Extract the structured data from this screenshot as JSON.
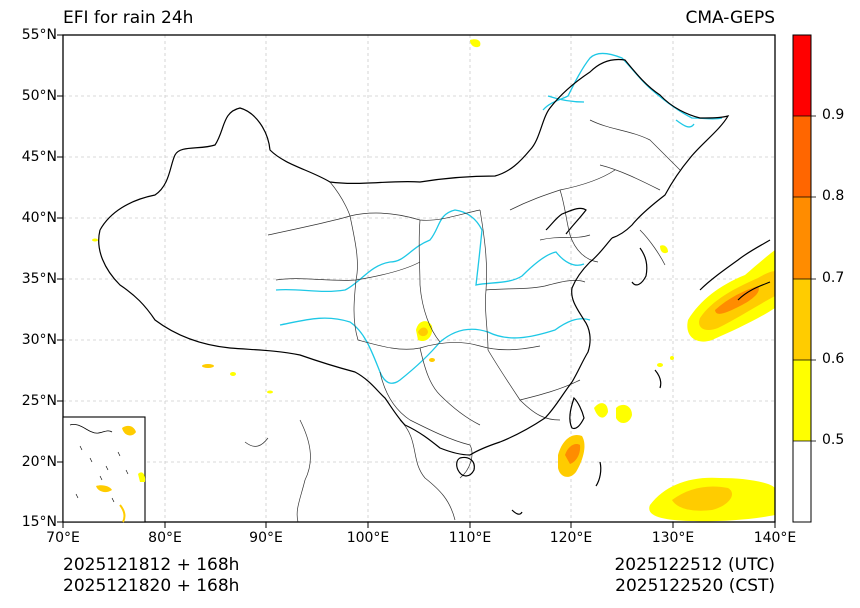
{
  "title_left": "EFI for rain 24h",
  "title_right": "CMA-GEPS",
  "lat_labels": [
    "55°N",
    "50°N",
    "45°N",
    "40°N",
    "35°N",
    "30°N",
    "25°N",
    "20°N",
    "15°N"
  ],
  "lon_labels": [
    "70°E",
    "80°E",
    "90°E",
    "100°E",
    "110°E",
    "120°E",
    "130°E",
    "140°E"
  ],
  "colorbar": {
    "ticks": [
      "0.9",
      "0.8",
      "0.7",
      "0.6",
      "0.5"
    ],
    "bands": [
      {
        "from": 0.9,
        "to": 1.0,
        "color": "#ff0000"
      },
      {
        "from": 0.8,
        "to": 0.9,
        "color": "#ff6600"
      },
      {
        "from": 0.7,
        "to": 0.8,
        "color": "#ff8c00"
      },
      {
        "from": 0.6,
        "to": 0.7,
        "color": "#ffcc00"
      },
      {
        "from": 0.5,
        "to": 0.6,
        "color": "#ffff00"
      },
      {
        "from": 0.4,
        "to": 0.5,
        "color": "#ffffff"
      }
    ]
  },
  "footer": {
    "init_utc": "2025121812 + 168h",
    "init_cst": "2025121820 + 168h",
    "valid_utc": "2025122512 (UTC)",
    "valid_cst": "2025122520 (CST)"
  },
  "colors": {
    "border": "#000000",
    "province": "#333333",
    "river": "#1ec8e6",
    "grid": "#cccccc"
  }
}
